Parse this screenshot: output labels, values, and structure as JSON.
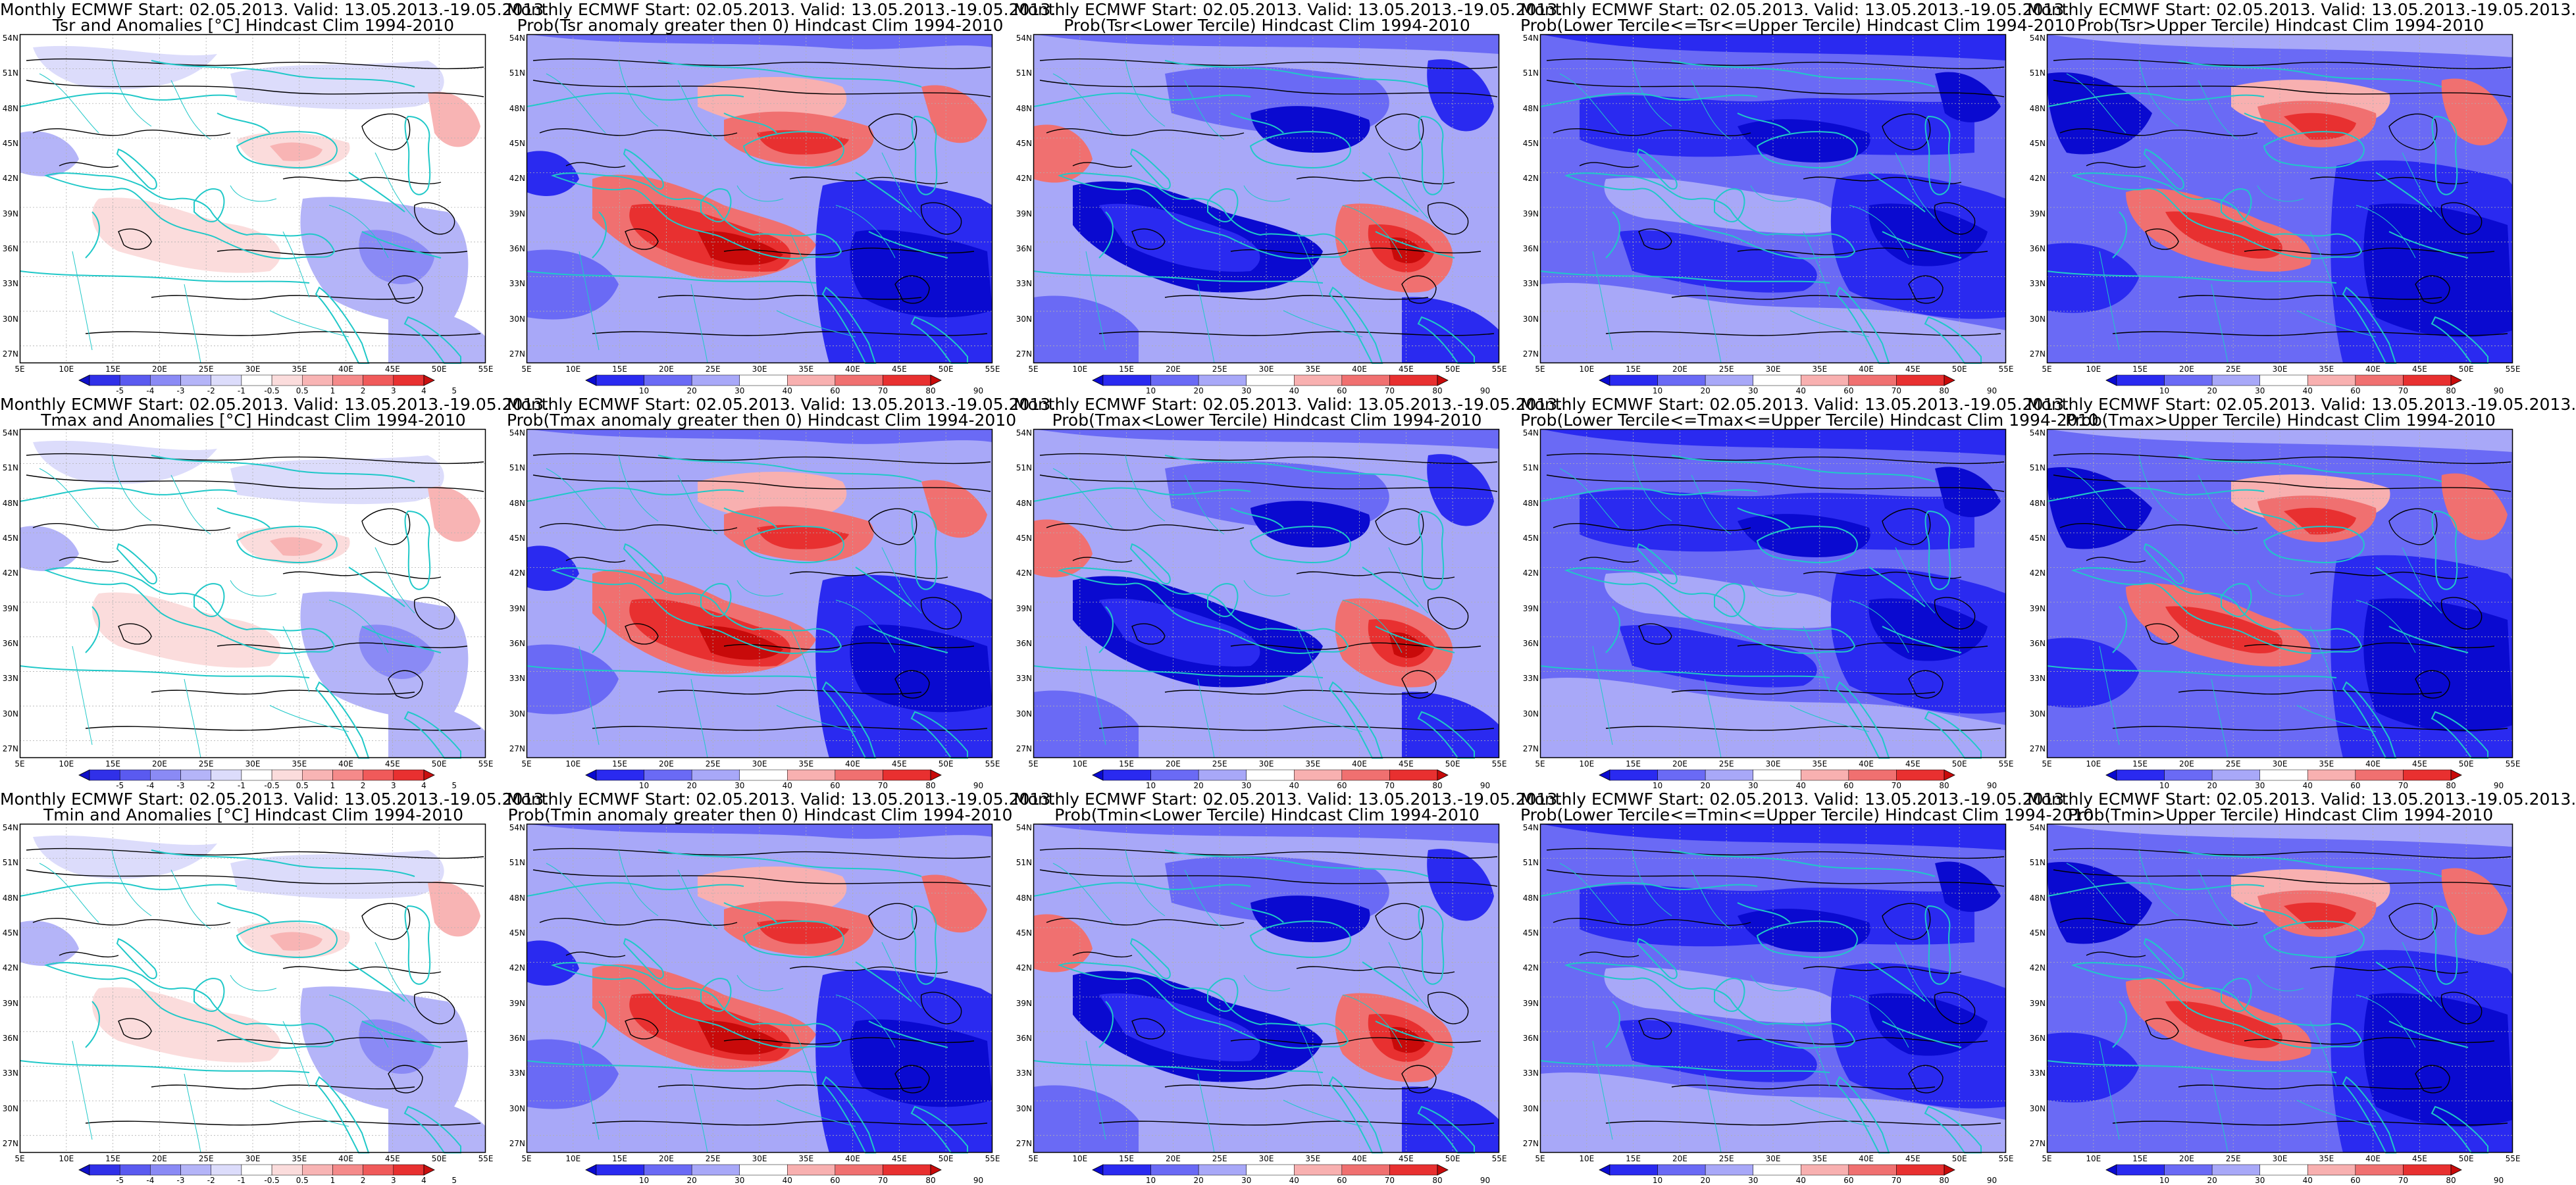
{
  "lat_labels": [
    "54N",
    "51N",
    "48N",
    "45N",
    "42N",
    "39N",
    "36N",
    "33N",
    "30N",
    "27N"
  ],
  "lon_labels": [
    "5E",
    "10E",
    "15E",
    "20E",
    "25E",
    "30E",
    "35E",
    "40E",
    "45E",
    "50E",
    "55E"
  ],
  "anomaly_scale": {
    "labels": [
      "-5",
      "-4",
      "-3",
      "-2",
      "-1",
      "-0.5",
      "0.5",
      "1",
      "2",
      "3",
      "4",
      "5"
    ],
    "colors": [
      "#1010c8",
      "#3030e8",
      "#5a5af0",
      "#8a8af5",
      "#b4b4f8",
      "#dcdcfb",
      "#ffffff",
      "#fbdcdc",
      "#f8b4b4",
      "#f58a8a",
      "#f05a5a",
      "#e83030",
      "#c81010"
    ]
  },
  "prob_scale": {
    "labels": [
      "10",
      "20",
      "30",
      "40",
      "60",
      "70",
      "80",
      "90"
    ],
    "colors": [
      "#0a0ad0",
      "#2a2af0",
      "#6a6af5",
      "#a8a8f8",
      "#ffffff",
      "#f8b0b0",
      "#f07070",
      "#e83030",
      "#c80a0a"
    ]
  },
  "panels": [
    {
      "title1": "Monthly ECMWF Start: 02.05.2013. Valid: 13.05.2013.-19.05.2013.",
      "title2": "Tsr and Anomalies [°C] Hindcast Clim 1994-2010",
      "kind": "anomaly",
      "field": "Tsr"
    },
    {
      "title1": "Monthly ECMWF Start: 02.05.2013. Valid: 13.05.2013.-19.05.2013.",
      "title2": "Prob(Tsr anomaly greater then 0) Hindcast Clim 1994-2010",
      "kind": "prob_pos",
      "field": "Tsr"
    },
    {
      "title1": "Monthly ECMWF Start: 02.05.2013. Valid: 13.05.2013.-19.05.2013.",
      "title2": "Prob(Tsr<Lower Tercile) Hindcast Clim 1994-2010",
      "kind": "prob_low",
      "field": "Tsr"
    },
    {
      "title1": "Monthly ECMWF Start: 02.05.2013. Valid: 13.05.2013.-19.05.2013.",
      "title2": "Prob(Lower Tercile<=Tsr<=Upper Tercile) Hindcast Clim 1994-2010",
      "kind": "prob_mid",
      "field": "Tsr"
    },
    {
      "title1": "Monthly ECMWF Start: 02.05.2013. Valid: 13.05.2013.-19.05.2013.",
      "title2": "Prob(Tsr>Upper Tercile) Hindcast Clim 1994-2010",
      "kind": "prob_up",
      "field": "Tsr"
    },
    {
      "title1": "Monthly ECMWF Start: 02.05.2013. Valid: 13.05.2013.-19.05.2013.",
      "title2": "Tmax and Anomalies [°C] Hindcast Clim 1994-2010",
      "kind": "anomaly",
      "field": "Tmax"
    },
    {
      "title1": "Monthly ECMWF Start: 02.05.2013. Valid: 13.05.2013.-19.05.2013.",
      "title2": "Prob(Tmax anomaly greater then 0) Hindcast Clim 1994-2010",
      "kind": "prob_pos",
      "field": "Tmax"
    },
    {
      "title1": "Monthly ECMWF Start: 02.05.2013. Valid: 13.05.2013.-19.05.2013.",
      "title2": "Prob(Tmax<Lower Tercile) Hindcast Clim 1994-2010",
      "kind": "prob_low",
      "field": "Tmax"
    },
    {
      "title1": "Monthly ECMWF Start: 02.05.2013. Valid: 13.05.2013.-19.05.2013.",
      "title2": "Prob(Lower Tercile<=Tmax<=Upper Tercile) Hindcast Clim 1994-2010",
      "kind": "prob_mid",
      "field": "Tmax"
    },
    {
      "title1": "Monthly ECMWF Start: 02.05.2013. Valid: 13.05.2013.-19.05.2013.",
      "title2": "Prob(Tmax>Upper Tercile) Hindcast Clim 1994-2010",
      "kind": "prob_up",
      "field": "Tmax"
    },
    {
      "title1": "Monthly ECMWF Start: 02.05.2013. Valid: 13.05.2013.-19.05.2013.",
      "title2": "Tmin and Anomalies [°C] Hindcast Clim 1994-2010",
      "kind": "anomaly",
      "field": "Tmin"
    },
    {
      "title1": "Monthly ECMWF Start: 02.05.2013. Valid: 13.05.2013.-19.05.2013.",
      "title2": "Prob(Tmin anomaly greater then 0) Hindcast Clim 1994-2010",
      "kind": "prob_pos",
      "field": "Tmin"
    },
    {
      "title1": "Monthly ECMWF Start: 02.05.2013. Valid: 13.05.2013.-19.05.2013.",
      "title2": "Prob(Tmin<Lower Tercile) Hindcast Clim 1994-2010",
      "kind": "prob_low",
      "field": "Tmin"
    },
    {
      "title1": "Monthly ECMWF Start: 02.05.2013. Valid: 13.05.2013.-19.05.2013.",
      "title2": "Prob(Lower Tercile<=Tmin<=Upper Tercile) Hindcast Clim 1994-2010",
      "kind": "prob_mid",
      "field": "Tmin"
    },
    {
      "title1": "Monthly ECMWF Start: 02.05.2013. Valid: 13.05.2013.-19.05.2013.",
      "title2": "Prob(Tmin>Upper Tercile) Hindcast Clim 1994-2010",
      "kind": "prob_up",
      "field": "Tmin"
    }
  ],
  "colors": {
    "coastline": "#20c8c8",
    "contour": "#000000",
    "grid": "#b0b0b0"
  }
}
